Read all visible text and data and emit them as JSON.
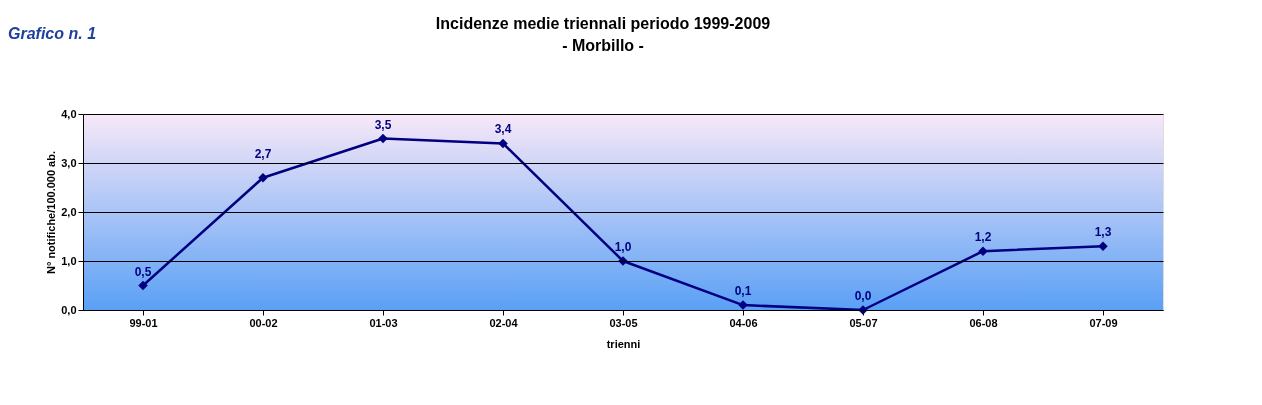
{
  "chart_data": {
    "type": "line",
    "title": "Incidenze medie triennali periodo 1999-2009",
    "subtitle": "- Morbillo -",
    "xlabel": "trienni",
    "ylabel": "N° notifiche/100.000 ab.",
    "annotations": [
      "Grafico n. 1"
    ],
    "categories": [
      "99-01",
      "00-02",
      "01-03",
      "02-04",
      "03-05",
      "04-06",
      "05-07",
      "06-08",
      "07-09"
    ],
    "series": [
      {
        "color": "#000080",
        "values": [
          0.5,
          2.7,
          3.5,
          3.4,
          1.0,
          0.1,
          0.0,
          1.2,
          1.3
        ],
        "value_labels": [
          "0,5",
          "2,7",
          "3,5",
          "3,4",
          "1,0",
          "0,1",
          "0,0",
          "1,2",
          "1,3"
        ]
      }
    ],
    "ylim": [
      0,
      4
    ],
    "yticks": [
      {
        "value": 0,
        "label": "0,0"
      },
      {
        "value": 1,
        "label": "1,0"
      },
      {
        "value": 2,
        "label": "2,0"
      },
      {
        "value": 3,
        "label": "3,0"
      },
      {
        "value": 4,
        "label": "4,0"
      }
    ],
    "grid": "y",
    "marker": "diamond",
    "line_style": "solid"
  }
}
